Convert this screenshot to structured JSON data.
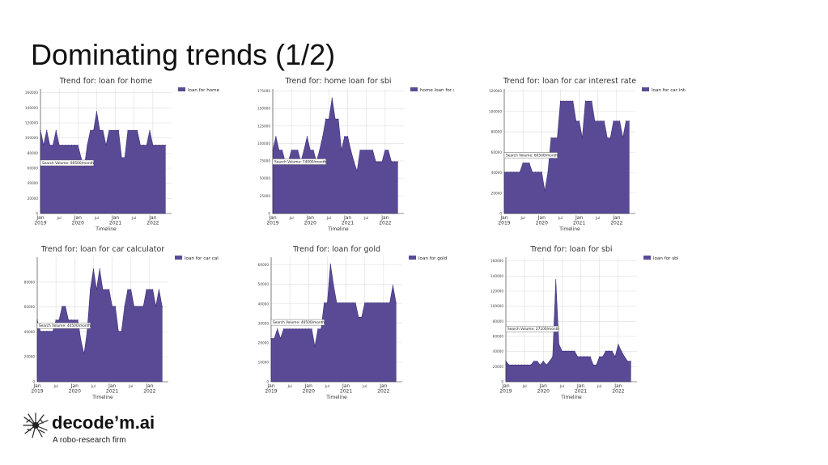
{
  "slide": {
    "title": "Dominating trends (1/2)"
  },
  "logo": {
    "name": "decode’m.ai",
    "tagline": "A robo-research firm"
  },
  "colors": {
    "fill": "#5a4a96",
    "edge": "#3d2f78",
    "grid": "#dddddd"
  },
  "chart_data": [
    {
      "type": "area",
      "title": "Trend for: loan for home",
      "xlabel": "Timeline",
      "legend": "loan for home",
      "legend_position": "top-right",
      "annotation": "Search Volume: 90500/month",
      "annotation_y": 67000,
      "x_ticks": [
        "Jan\n2019",
        "Jul",
        "Jan\n2020",
        "Jul",
        "Jan\n2021",
        "Jul",
        "Jan\n2022"
      ],
      "x_range": [
        0,
        42
      ],
      "y_ticks": [
        0,
        20000,
        40000,
        60000,
        80000,
        100000,
        120000,
        140000,
        160000
      ],
      "ylim": [
        0,
        165000
      ],
      "grid": true,
      "values": [
        110000,
        90500,
        110000,
        90500,
        90500,
        110000,
        90500,
        90500,
        90500,
        90500,
        90500,
        90500,
        90500,
        74000,
        60500,
        90500,
        110000,
        110000,
        135000,
        110000,
        110000,
        90500,
        110000,
        110000,
        110000,
        110000,
        74000,
        74000,
        110000,
        110000,
        110000,
        110000,
        90500,
        90500,
        90500,
        110000,
        90500,
        90500,
        90500,
        90500,
        90500
      ]
    },
    {
      "type": "area",
      "title": "Trend for: home loan for sbi",
      "xlabel": "Timeline",
      "legend": "home loan for sbi",
      "legend_position": "top-right",
      "annotation": "Search Volume: 74000/month",
      "annotation_y": 74000,
      "x_ticks": [
        "Jan\n2019",
        "Jul",
        "Jan\n2020",
        "Jul",
        "Jan\n2021",
        "Jul",
        "Jan\n2022"
      ],
      "x_range": [
        0,
        42
      ],
      "y_ticks": [
        0,
        25000,
        50000,
        75000,
        100000,
        125000,
        150000,
        175000
      ],
      "ylim": [
        0,
        178000
      ],
      "grid": true,
      "values": [
        90500,
        110000,
        90500,
        90500,
        74000,
        74000,
        90500,
        90500,
        90500,
        74000,
        90500,
        110000,
        90500,
        90500,
        74000,
        90500,
        110000,
        135000,
        135000,
        165000,
        135000,
        135000,
        90500,
        110000,
        110000,
        90500,
        74000,
        60500,
        90500,
        90500,
        90500,
        90500,
        90500,
        74000,
        74000,
        74000,
        90500,
        90500,
        74000,
        74000,
        74000
      ]
    },
    {
      "type": "area",
      "title": "Trend for: loan for car interest rate",
      "xlabel": "Timeline",
      "legend": "loan for car interest rate",
      "legend_position": "top-right",
      "annotation": "Search Volume: 60500/month",
      "annotation_y": 57000,
      "x_ticks": [
        "Jan\n2019",
        "Jul",
        "Jan\n2020",
        "Jul",
        "Jan\n2021",
        "Jul",
        "Jan\n2022"
      ],
      "x_range": [
        0,
        42
      ],
      "y_ticks": [
        0,
        20000,
        40000,
        60000,
        80000,
        100000,
        120000
      ],
      "ylim": [
        0,
        122000
      ],
      "grid": true,
      "values": [
        40500,
        40500,
        40500,
        40500,
        40500,
        40500,
        49500,
        49500,
        49500,
        40500,
        40500,
        40500,
        40500,
        22200,
        40500,
        74000,
        74000,
        74000,
        110000,
        110000,
        110000,
        110000,
        110000,
        90500,
        90500,
        74000,
        110000,
        110000,
        110000,
        90500,
        90500,
        90500,
        90500,
        74000,
        74000,
        90500,
        90500,
        90500,
        74000,
        90500,
        90500
      ]
    },
    {
      "type": "area",
      "title": "Trend for: loan for car calculator",
      "xlabel": "Timeline",
      "legend": "loan for car calculator",
      "legend_position": "top-right",
      "annotation": "Search Volume: 40500/month",
      "annotation_y": 45000,
      "x_ticks": [
        "Jan\n2019",
        "Jul",
        "Jan\n2020",
        "Jul",
        "Jan\n2021",
        "Jul",
        "Jan\n2022"
      ],
      "x_range": [
        0,
        42
      ],
      "y_ticks": [
        0,
        20000,
        40000,
        60000,
        80000
      ],
      "ylim": [
        0,
        100000
      ],
      "grid": true,
      "values": [
        49500,
        40500,
        40500,
        40500,
        40500,
        40500,
        49500,
        49500,
        60500,
        60500,
        49500,
        49500,
        49500,
        49500,
        33100,
        22200,
        40500,
        74000,
        90500,
        74000,
        90500,
        74000,
        74000,
        74000,
        60500,
        60500,
        40500,
        40500,
        60500,
        74000,
        74000,
        60500,
        60500,
        60500,
        60500,
        74000,
        74000,
        74000,
        60500,
        74000,
        60500
      ]
    },
    {
      "type": "area",
      "title": "Trend for: loan for gold",
      "xlabel": "Timeline",
      "legend": "loan for gold",
      "legend_position": "top-right",
      "annotation": "Search Volume: 40500/month",
      "annotation_y": 30500,
      "x_ticks": [
        "Jan\n2019",
        "Jul",
        "Jan\n2020",
        "Jul",
        "Jan\n2021",
        "Jul",
        "Jan\n2022"
      ],
      "x_range": [
        0,
        42
      ],
      "y_ticks": [
        0,
        10000,
        20000,
        30000,
        40000,
        50000,
        60000
      ],
      "ylim": [
        0,
        64000
      ],
      "grid": true,
      "values": [
        22200,
        22200,
        27100,
        22200,
        27100,
        27100,
        27100,
        27100,
        27100,
        27100,
        27100,
        27100,
        27100,
        27100,
        18100,
        27100,
        27100,
        40500,
        40500,
        60500,
        49500,
        40500,
        40500,
        40500,
        40500,
        40500,
        40500,
        40500,
        33100,
        33100,
        40500,
        40500,
        40500,
        40500,
        40500,
        40500,
        40500,
        40500,
        40500,
        49500,
        40500
      ]
    },
    {
      "type": "area",
      "title": "Trend for: loan for sbi",
      "xlabel": "Timeline",
      "legend": "loan for sbi",
      "legend_position": "top-right",
      "annotation": "Search Volume: 27100/month",
      "annotation_y": 70000,
      "x_ticks": [
        "Jan\n2019",
        "Jul",
        "Jan\n2020",
        "Jul",
        "Jan\n2021",
        "Jul",
        "Jan\n2022"
      ],
      "x_range": [
        0,
        42
      ],
      "y_ticks": [
        0,
        20000,
        40000,
        60000,
        80000,
        100000,
        120000,
        140000,
        160000
      ],
      "ylim": [
        0,
        165000
      ],
      "grid": true,
      "values": [
        27100,
        22200,
        22200,
        22200,
        22200,
        22200,
        22200,
        22200,
        22200,
        27100,
        27100,
        22200,
        27100,
        22200,
        27100,
        33100,
        135000,
        49500,
        40500,
        40500,
        40500,
        40500,
        40500,
        33100,
        33100,
        33100,
        33100,
        33100,
        22200,
        22200,
        33100,
        33100,
        40500,
        40500,
        40500,
        33100,
        49500,
        40500,
        33100,
        27100,
        27100
      ]
    }
  ]
}
